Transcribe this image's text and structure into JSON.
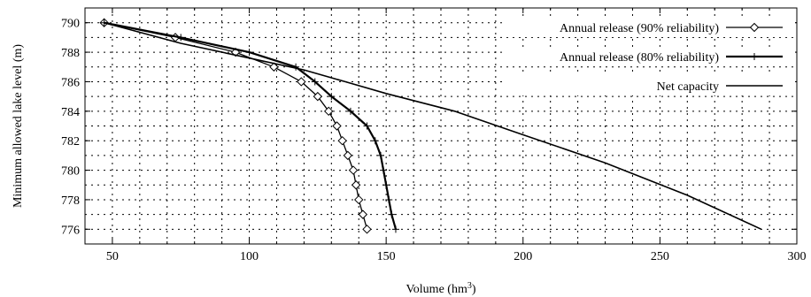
{
  "chart_data": {
    "type": "line",
    "xlabel": "Volume (hm",
    "xlabel_sup": "3",
    "xlabel_close": ")",
    "ylabel": "Minimum allowed lake level (m)",
    "xlim": [
      40,
      300
    ],
    "ylim": [
      775,
      791
    ],
    "xticks": [
      50,
      100,
      150,
      200,
      250,
      300
    ],
    "yticks": [
      776,
      778,
      780,
      782,
      784,
      786,
      788,
      790
    ],
    "grid": true,
    "legend_position": "top-right",
    "series": [
      {
        "name": "Annual release (90% reliability)",
        "marker": "diamond",
        "color": "#000000",
        "points": [
          [
            47,
            790
          ],
          [
            73,
            789
          ],
          [
            95,
            788
          ],
          [
            109,
            787
          ],
          [
            119,
            786
          ],
          [
            125,
            785
          ],
          [
            129,
            784
          ],
          [
            132,
            783
          ],
          [
            134,
            782
          ],
          [
            136,
            781
          ],
          [
            138,
            780
          ],
          [
            139,
            779
          ],
          [
            140,
            778
          ],
          [
            141.5,
            777
          ],
          [
            143,
            776
          ]
        ]
      },
      {
        "name": "Annual release (80% reliability)",
        "marker": "plus",
        "color": "#000000",
        "points": [
          [
            47,
            790
          ],
          [
            75,
            789
          ],
          [
            100,
            788
          ],
          [
            117,
            787
          ],
          [
            124,
            786
          ],
          [
            130,
            785
          ],
          [
            137,
            784
          ],
          [
            143,
            783
          ],
          [
            146,
            782
          ],
          [
            148,
            781
          ],
          [
            149,
            780
          ],
          [
            150,
            779
          ],
          [
            151,
            778
          ],
          [
            152,
            777
          ],
          [
            153.5,
            776
          ]
        ]
      },
      {
        "name": "Net capacity",
        "marker": "none",
        "color": "#000000",
        "points": [
          [
            47,
            790
          ],
          [
            75,
            788.6
          ],
          [
            100,
            787.6
          ],
          [
            120,
            786.8
          ],
          [
            135,
            786
          ],
          [
            150,
            785.2
          ],
          [
            175,
            784
          ],
          [
            200,
            782.4
          ],
          [
            230,
            780.5
          ],
          [
            260,
            778.3
          ],
          [
            287,
            776
          ]
        ]
      }
    ]
  }
}
